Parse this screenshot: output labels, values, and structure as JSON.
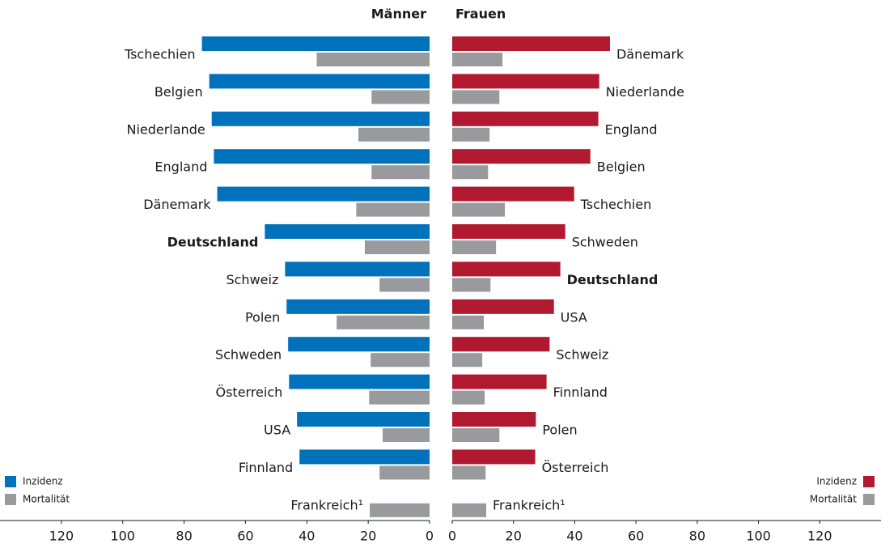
{
  "chart_data": [
    {
      "type": "bar",
      "orientation": "horizontal",
      "title": "Männer",
      "categories": [
        "Tschechien",
        "Belgien",
        "Niederlande",
        "England",
        "Dänemark",
        "Deutschland",
        "Schweiz",
        "Polen",
        "Schweden",
        "Österreich",
        "USA",
        "Finnland",
        "Frankreich¹"
      ],
      "highlight": "Deutschland",
      "series": [
        {
          "name": "Inzidenz",
          "color": "#0072bc",
          "values": [
            74.2,
            71.8,
            71,
            70.3,
            69.2,
            53.7,
            47.1,
            46.6,
            46.1,
            45.8,
            43.2,
            42.4,
            null
          ]
        },
        {
          "name": "Mortalität",
          "color": "#999a9d",
          "values": [
            36.8,
            18.9,
            23.2,
            18.9,
            23.9,
            21.1,
            16.3,
            30.3,
            19.2,
            19.7,
            15.3,
            16.3,
            19.5
          ]
        }
      ],
      "xlim": [
        140,
        0
      ],
      "xticks": [
        120,
        100,
        80,
        60,
        40,
        20,
        0
      ],
      "legend": "lower left"
    },
    {
      "type": "bar",
      "orientation": "horizontal",
      "title": "Frauen",
      "categories": [
        "Dänemark",
        "Niederlande",
        "England",
        "Belgien",
        "Tschechien",
        "Schweden",
        "Deutschland",
        "USA",
        "Schweiz",
        "Finnland",
        "Polen",
        "Österreich",
        "Frankreich¹"
      ],
      "highlight": "Deutschland",
      "series": [
        {
          "name": "Inzidenz",
          "color": "#b0192f",
          "values": [
            51.5,
            48,
            47.7,
            45.1,
            39.8,
            36.9,
            35.3,
            33.2,
            31.8,
            30.8,
            27.3,
            27.1,
            null
          ]
        },
        {
          "name": "Mortalität",
          "color": "#999a9d",
          "values": [
            16.4,
            15.4,
            12.2,
            11.7,
            17.2,
            14.3,
            12.5,
            10.3,
            9.8,
            10.6,
            15.4,
            10.9,
            11.1
          ]
        }
      ],
      "xlim": [
        0,
        140
      ],
      "xticks": [
        0,
        20,
        40,
        60,
        80,
        100,
        120
      ],
      "legend": "lower right"
    }
  ]
}
